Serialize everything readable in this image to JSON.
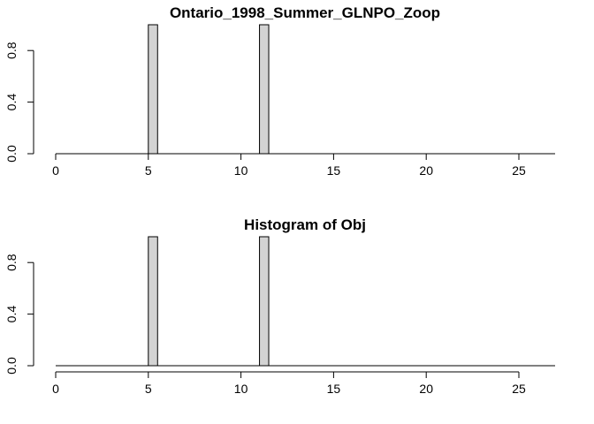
{
  "chart_data": [
    {
      "type": "bar",
      "title": "Ontario_1998_Summer_GLNPO_Zoop",
      "xlabel": "",
      "ylabel": "",
      "xlim": [
        0,
        27
      ],
      "ylim": [
        0,
        1
      ],
      "x_ticks": [
        0,
        5,
        10,
        15,
        20,
        25
      ],
      "y_ticks": [
        "0.0",
        "0.4",
        "0.8"
      ],
      "bin_width": 0.5,
      "bars": [
        {
          "x_start": 5.0,
          "x_end": 5.5,
          "value": 1
        },
        {
          "x_start": 11.0,
          "x_end": 11.5,
          "value": 1
        }
      ],
      "grid": false
    },
    {
      "type": "bar",
      "title": "Histogram of Obj",
      "xlabel": "",
      "ylabel": "",
      "xlim": [
        0,
        27
      ],
      "ylim": [
        0,
        1
      ],
      "x_ticks": [
        0,
        5,
        10,
        15,
        20,
        25
      ],
      "y_ticks": [
        "0.0",
        "0.4",
        "0.8"
      ],
      "bin_width": 0.5,
      "bars": [
        {
          "x_start": 5.0,
          "x_end": 5.5,
          "value": 1
        },
        {
          "x_start": 11.0,
          "x_end": 11.5,
          "value": 1
        }
      ],
      "grid": false
    }
  ]
}
